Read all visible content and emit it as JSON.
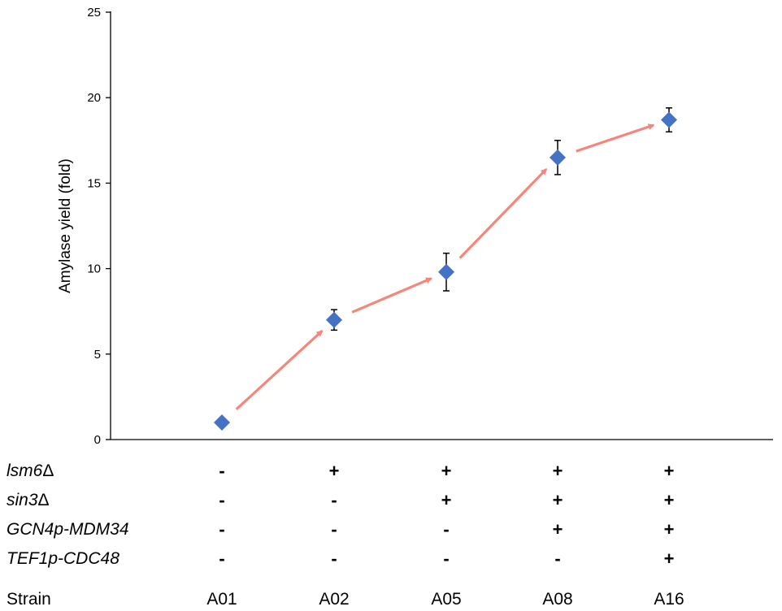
{
  "chart_data": {
    "type": "scatter",
    "ylabel": "Amylase yield  (fold)",
    "ylim": [
      0,
      25
    ],
    "yticks": [
      "0",
      "5",
      "10",
      "15",
      "20",
      "25"
    ],
    "grid": false,
    "categories": [
      "A01",
      "A02",
      "A05",
      "A08",
      "A16"
    ],
    "values": [
      1.0,
      7.0,
      9.8,
      16.5,
      18.7
    ],
    "errors": [
      0,
      0.6,
      1.1,
      1.0,
      0.7
    ],
    "marker_color": "#4472C4",
    "arrow_color": "#F4877A",
    "arrows": "connect consecutive strains in increasing yield",
    "genotype_rows": [
      {
        "label": "lsm6",
        "suffix": "Δ",
        "marks": [
          "-",
          "+",
          "+",
          "+",
          "+"
        ]
      },
      {
        "label": "sin3",
        "suffix": "Δ",
        "marks": [
          "-",
          "-",
          "+",
          "+",
          "+"
        ]
      },
      {
        "label": "GCN4p-MDM34",
        "suffix": "",
        "marks": [
          "-",
          "-",
          "-",
          "+",
          "+"
        ]
      },
      {
        "label": "TEF1p-CDC48",
        "suffix": "",
        "marks": [
          "-",
          "-",
          "-",
          "-",
          "+"
        ]
      }
    ],
    "strain_row_label": "Strain"
  }
}
